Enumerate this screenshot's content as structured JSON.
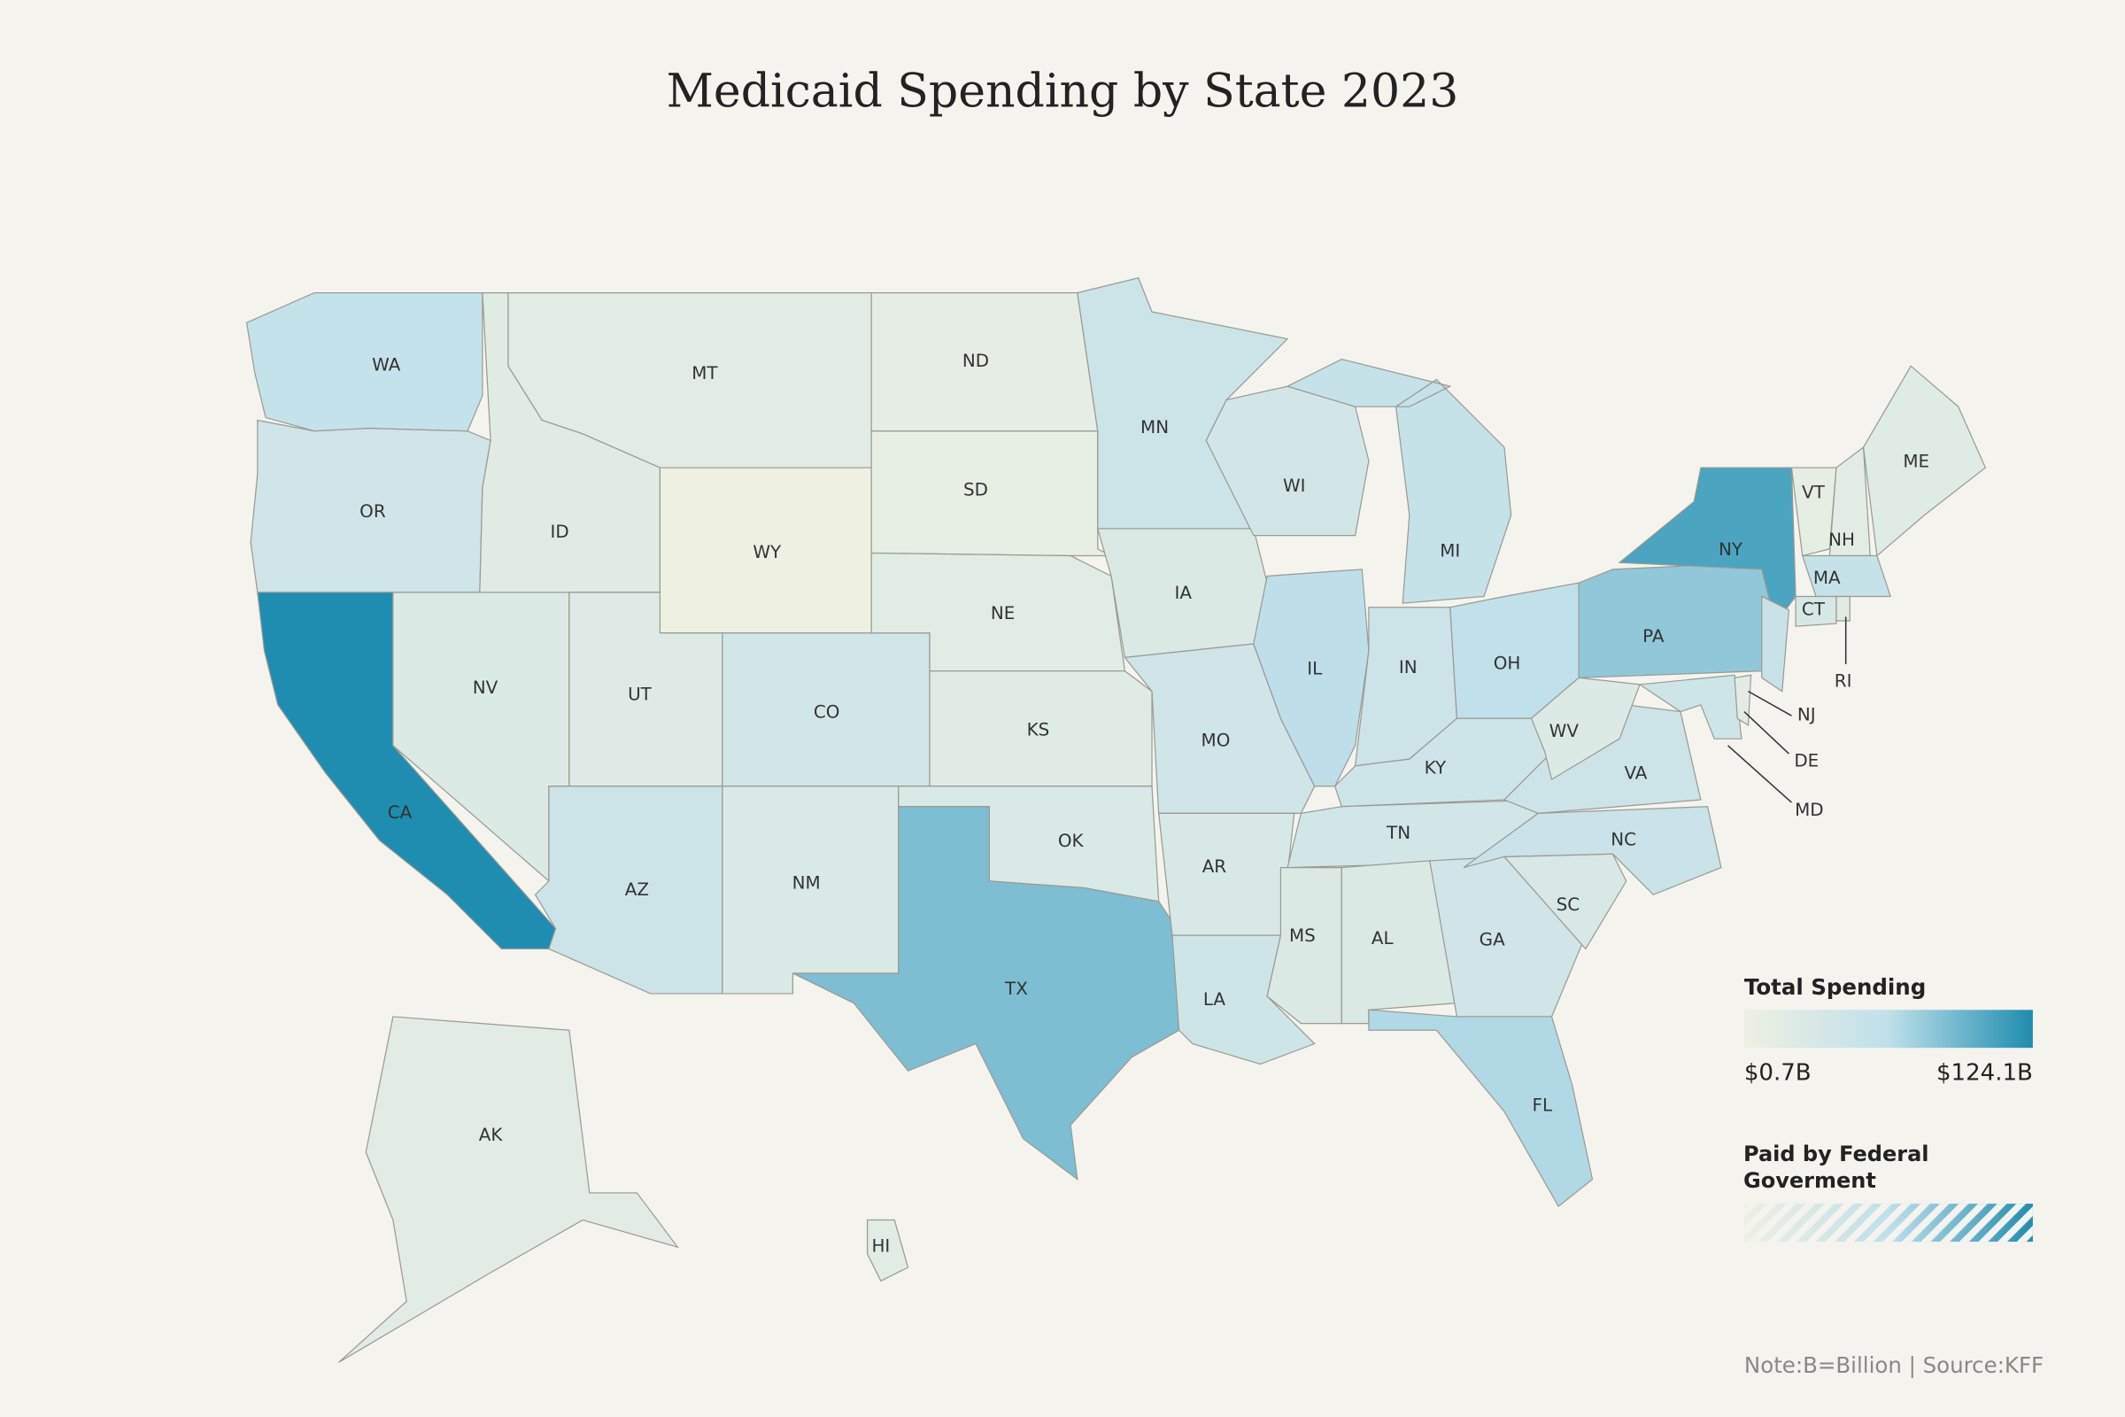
{
  "chart_data": {
    "type": "choropleth",
    "title": "Medicaid Spending by State 2023",
    "note": "Note:B=Billion | Source:KFF",
    "scale": "sqrt",
    "colors": [
      "#eef0e2",
      "#bfe0ea",
      "#1e8db0"
    ],
    "legend": {
      "title": "Total Spending",
      "min": {
        "value": 0.7,
        "label": "$0.7B"
      },
      "max": {
        "value": 124.1,
        "label": "$124.1B"
      },
      "hatch_title": "Paid by Federal Goverment"
    },
    "states": [
      "WA",
      "OR",
      "CA",
      "NV",
      "ID",
      "MT",
      "WY",
      "UT",
      "CO",
      "AZ",
      "NM",
      "ND",
      "SD",
      "NE",
      "KS",
      "OK",
      "TX",
      "MN",
      "IA",
      "MO",
      "AR",
      "LA",
      "WI",
      "IL",
      "MI",
      "IN",
      "OH",
      "KY",
      "TN",
      "MS",
      "AL",
      "GA",
      "FL",
      "SC",
      "NC",
      "VA",
      "WV",
      "PA",
      "NY",
      "NJ",
      "MD",
      "DE",
      "VT",
      "NH",
      "ME",
      "MA",
      "CT",
      "RI",
      "AK",
      "HI"
    ],
    "values": [
      25,
      14,
      124.1,
      5,
      3.5,
      2.8,
      0.7,
      4.5,
      13,
      17,
      7,
      1.8,
      1.3,
      3,
      4,
      7,
      62,
      18,
      6,
      14,
      8,
      15,
      12,
      32,
      24,
      17,
      30,
      16,
      13,
      6,
      6,
      14,
      37,
      8,
      20,
      17,
      5,
      52,
      92,
      21,
      15,
      2.8,
      1.7,
      2.5,
      4,
      24,
      9,
      3.2,
      2.5,
      3
    ]
  }
}
